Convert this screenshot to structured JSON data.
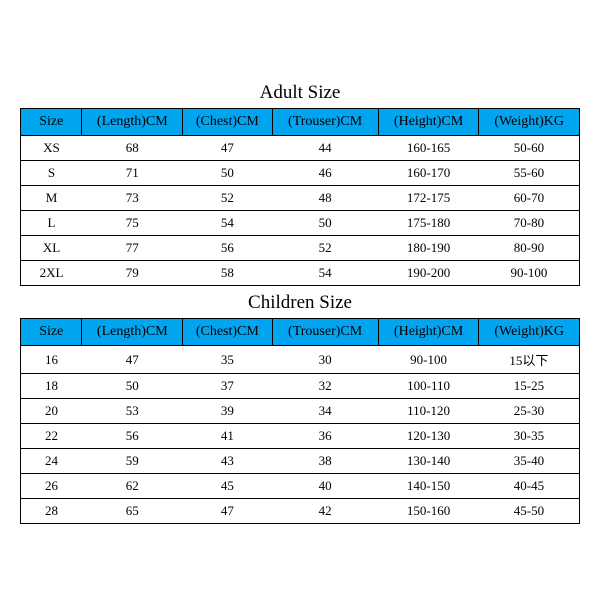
{
  "adult": {
    "title": "Adult Size",
    "columns": [
      "Size",
      "(Length)CM",
      "(Chest)CM",
      "(Trouser)CM",
      "(Height)CM",
      "(Weight)KG"
    ],
    "rows": [
      [
        "XS",
        "68",
        "47",
        "44",
        "160-165",
        "50-60"
      ],
      [
        "S",
        "71",
        "50",
        "46",
        "160-170",
        "55-60"
      ],
      [
        "M",
        "73",
        "52",
        "48",
        "172-175",
        "60-70"
      ],
      [
        "L",
        "75",
        "54",
        "50",
        "175-180",
        "70-80"
      ],
      [
        "XL",
        "77",
        "56",
        "52",
        "180-190",
        "80-90"
      ],
      [
        "2XL",
        "79",
        "58",
        "54",
        "190-200",
        "90-100"
      ]
    ]
  },
  "children": {
    "title": "Children Size",
    "columns": [
      "Size",
      "(Length)CM",
      "(Chest)CM",
      "(Trouser)CM",
      "(Height)CM",
      "(Weight)KG"
    ],
    "rows": [
      [
        "16",
        "47",
        "35",
        "30",
        "90-100",
        "15以下"
      ],
      [
        "18",
        "50",
        "37",
        "32",
        "100-110",
        "15-25"
      ],
      [
        "20",
        "53",
        "39",
        "34",
        "110-120",
        "25-30"
      ],
      [
        "22",
        "56",
        "41",
        "36",
        "120-130",
        "30-35"
      ],
      [
        "24",
        "59",
        "43",
        "38",
        "130-140",
        "35-40"
      ],
      [
        "26",
        "62",
        "45",
        "40",
        "140-150",
        "40-45"
      ],
      [
        "28",
        "65",
        "47",
        "42",
        "150-160",
        "45-50"
      ]
    ]
  },
  "style": {
    "header_bg": "#00a4ef",
    "border_color": "#000000",
    "bg": "#ffffff",
    "title_fontsize": 19,
    "header_fontsize": 14,
    "cell_fontsize": 13,
    "col_widths_pct": [
      11,
      18,
      16,
      19,
      18,
      18
    ]
  }
}
